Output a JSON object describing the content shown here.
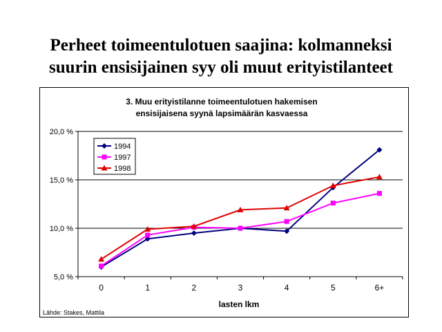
{
  "slide": {
    "title_line1": "Perheet toimeentulotuen saajina: kolmanneksi",
    "title_line2": "suurin ensisijainen syy oli muut erityistilanteet"
  },
  "source": "Lähde: Stakes, Mattila",
  "colors": {
    "1994": "#000080",
    "1997": "#ff00ff",
    "1998": "#e00000"
  },
  "chart_data": {
    "type": "line",
    "title_line1": "3. Muu erityistilanne toimeentulotuen hakemisen",
    "title_line2": "ensisijaisena syynä lapsimäärän kasvaessa",
    "xlabel": "lasten lkm",
    "ylabel": "",
    "categories": [
      "0",
      "1",
      "2",
      "3",
      "4",
      "5",
      "6+"
    ],
    "yticks": [
      "5,0 %",
      "10,0 %",
      "15,0 %",
      "20,0 %"
    ],
    "ylim": [
      5,
      20
    ],
    "grid": true,
    "legend_position": "top-left",
    "series": [
      {
        "name": "1994",
        "marker": "diamond",
        "values": [
          6.0,
          8.9,
          9.5,
          10.0,
          9.7,
          14.2,
          18.1
        ]
      },
      {
        "name": "1997",
        "marker": "square",
        "values": [
          6.1,
          9.3,
          10.1,
          10.0,
          10.7,
          12.6,
          13.6
        ]
      },
      {
        "name": "1998",
        "marker": "triangle",
        "values": [
          6.8,
          9.9,
          10.2,
          11.9,
          12.1,
          14.4,
          15.3
        ]
      }
    ]
  }
}
